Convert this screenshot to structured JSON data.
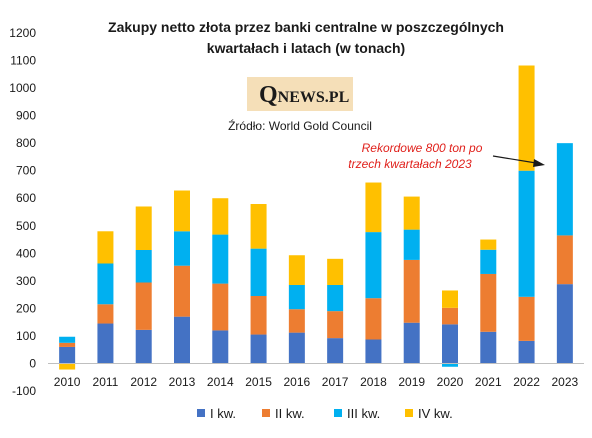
{
  "logo": {
    "initial": "Q",
    "rest": "NEWS.PL"
  },
  "source": "Źródło: World Gold Council",
  "annotation": {
    "line1": "Rekordowe 800 ton po",
    "line2": "trzech kwartałach 2023"
  },
  "chart_data": {
    "type": "bar",
    "stacked": true,
    "title": "Zakupy netto złota przez banki centralne w poszczególnych kwartałach i latach (w tonach)",
    "title_lines": [
      "Zakupy  netto złota przez banki  centralne w poszczególnych",
      "kwartałach  i latach (w tonach)"
    ],
    "xlabel": "",
    "ylabel": "",
    "ylim": [
      -100,
      1200
    ],
    "yticks": [
      -100,
      0,
      100,
      200,
      300,
      400,
      500,
      600,
      700,
      800,
      900,
      1000,
      1100,
      1200
    ],
    "grid": false,
    "legend_position": "bottom",
    "categories": [
      "2010",
      "2011",
      "2012",
      "2013",
      "2014",
      "2015",
      "2016",
      "2017",
      "2018",
      "2019",
      "2020",
      "2021",
      "2022",
      "2023"
    ],
    "series": [
      {
        "name": "I kw.",
        "color": "#4472c4",
        "values": [
          60,
          145,
          122,
          170,
          120,
          105,
          112,
          92,
          87,
          148,
          142,
          115,
          82,
          288
        ]
      },
      {
        "name": "II kw.",
        "color": "#ed7d31",
        "values": [
          15,
          70,
          172,
          185,
          170,
          140,
          85,
          98,
          150,
          228,
          60,
          210,
          160,
          177
        ]
      },
      {
        "name": "III kw.",
        "color": "#00b0f0",
        "values": [
          22,
          148,
          118,
          125,
          178,
          172,
          88,
          95,
          240,
          110,
          -12,
          88,
          458,
          335
        ]
      },
      {
        "name": "IV kw.",
        "color": "#ffc000",
        "values": [
          -22,
          117,
          158,
          148,
          132,
          162,
          108,
          95,
          180,
          120,
          63,
          37,
          382,
          0
        ]
      }
    ]
  }
}
